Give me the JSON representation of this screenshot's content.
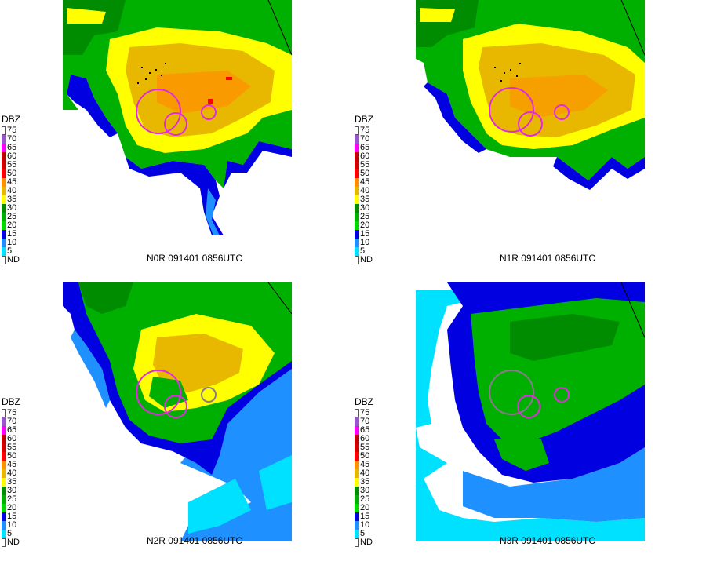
{
  "legend": {
    "title": "DBZ",
    "items": [
      {
        "label": "75",
        "color": "#ffffff"
      },
      {
        "label": "70",
        "color": "#9955c9"
      },
      {
        "label": "65",
        "color": "#ff00ff"
      },
      {
        "label": "60",
        "color": "#c00000"
      },
      {
        "label": "55",
        "color": "#d40000"
      },
      {
        "label": "50",
        "color": "#ff0000"
      },
      {
        "label": "45",
        "color": "#ff9000"
      },
      {
        "label": "40",
        "color": "#e8b800"
      },
      {
        "label": "35",
        "color": "#ffff00"
      },
      {
        "label": "30",
        "color": "#008c00"
      },
      {
        "label": "25",
        "color": "#00b000"
      },
      {
        "label": "20",
        "color": "#00d800"
      },
      {
        "label": "15",
        "color": "#0000e0"
      },
      {
        "label": "10",
        "color": "#1e90ff"
      },
      {
        "label": "5",
        "color": "#00e0ff"
      },
      {
        "label": "ND",
        "color": "#ffffff"
      }
    ]
  },
  "panels": [
    {
      "caption": "N0R 091401 0856UTC",
      "product": "N0R"
    },
    {
      "caption": "N1R 091401 0856UTC",
      "product": "N1R"
    },
    {
      "caption": "N2R 091401 0856UTC",
      "product": "N2R"
    },
    {
      "caption": "N3R 091401 0856UTC",
      "product": "N3R"
    }
  ],
  "colors": {
    "ring_magenta": "#e02ae0",
    "ring_gray": "#8a7a8a"
  }
}
